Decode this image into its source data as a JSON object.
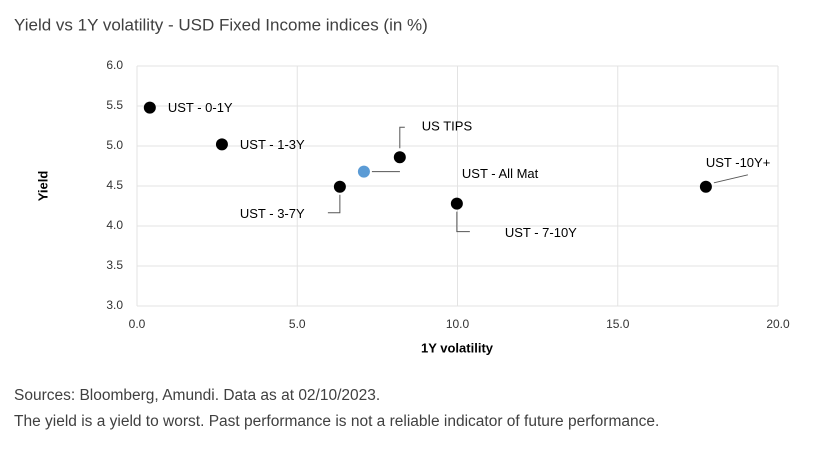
{
  "chart_data": {
    "type": "scatter",
    "title": "Yield vs 1Y volatility - USD Fixed Income indices (in %)",
    "x_label": "1Y volatility",
    "y_label": "Yield",
    "point_labels": [
      "UST - 0-1Y",
      "UST - 1-3Y",
      "UST - 3-7Y",
      "UST - All Mat",
      "US TIPS",
      "UST - 7-10Y",
      "UST -10Y+"
    ],
    "x": [
      0.4,
      2.65,
      6.33,
      7.08,
      8.2,
      9.98,
      17.75
    ],
    "values": [
      5.48,
      5.02,
      4.49,
      4.68,
      4.86,
      4.28,
      4.49
    ],
    "colors": [
      "#000000",
      "#000000",
      "#000000",
      "#5b9bd5",
      "#000000",
      "#000000",
      "#000000"
    ],
    "xlim": [
      0,
      20
    ],
    "xticks": [
      {
        "value": 0,
        "label": "0.0"
      },
      {
        "value": 5,
        "label": "5.0"
      },
      {
        "value": 10,
        "label": "10.0"
      },
      {
        "value": 15,
        "label": "15.0"
      },
      {
        "value": 20,
        "label": "20.0"
      }
    ],
    "ylim": [
      3,
      6
    ],
    "yticks": [
      {
        "value": 3,
        "label": "3.0"
      },
      {
        "value": 3.5,
        "label": "3.5"
      },
      {
        "value": 4,
        "label": "4.0"
      },
      {
        "value": 4.5,
        "label": "4.5"
      },
      {
        "value": 5,
        "label": "5.0"
      },
      {
        "value": 5.5,
        "label": "5.5"
      },
      {
        "value": 6,
        "label": "6.0"
      }
    ],
    "grid": true
  },
  "notes": [
    "Sources: Bloomberg, Amundi. Data as at 02/10/2023.",
    "The yield is a yield to worst. Past performance is not a reliable indicator of future performance."
  ]
}
